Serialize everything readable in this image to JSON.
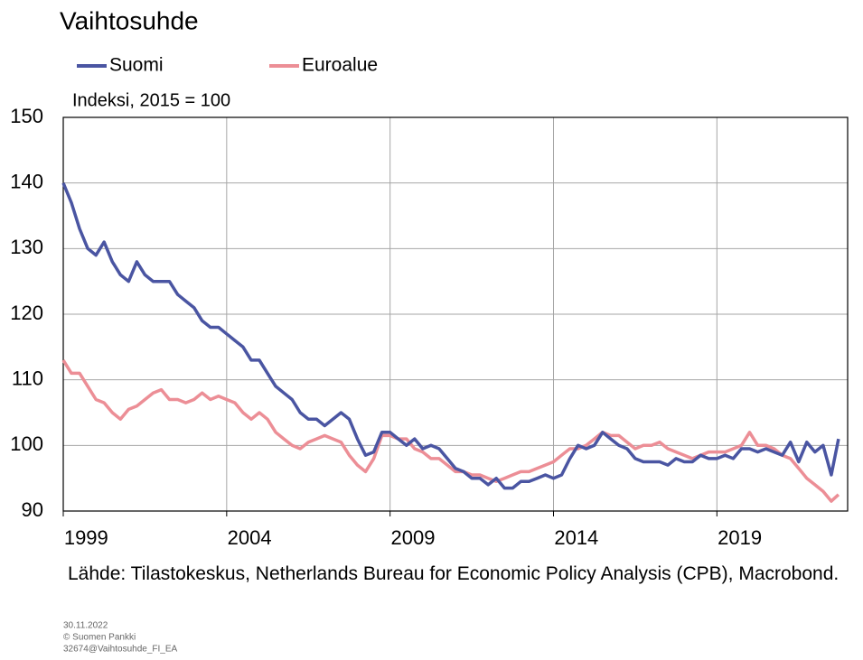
{
  "chart_data": {
    "type": "line",
    "title": "Vaihtosuhde",
    "y_label": "Indeksi, 2015 = 100",
    "source": "Lähde: Tilastokeskus, Netherlands Bureau for Economic Policy Analysis (CPB), Macrobond.",
    "footer": [
      "30.11.2022",
      "© Suomen Pankki",
      "32674@Vaihtosuhde_FI_EA"
    ],
    "grid": true,
    "xlim": [
      1999,
      2023
    ],
    "xticks": [
      1999,
      2004,
      2009,
      2014,
      2019
    ],
    "ylim": [
      90,
      150
    ],
    "yticks": [
      90,
      100,
      110,
      120,
      130,
      140,
      150
    ],
    "x": [
      1999.0,
      1999.25,
      1999.5,
      1999.75,
      2000.0,
      2000.25,
      2000.5,
      2000.75,
      2001.0,
      2001.25,
      2001.5,
      2001.75,
      2002.0,
      2002.25,
      2002.5,
      2002.75,
      2003.0,
      2003.25,
      2003.5,
      2003.75,
      2004.0,
      2004.25,
      2004.5,
      2004.75,
      2005.0,
      2005.25,
      2005.5,
      2005.75,
      2006.0,
      2006.25,
      2006.5,
      2006.75,
      2007.0,
      2007.25,
      2007.5,
      2007.75,
      2008.0,
      2008.25,
      2008.5,
      2008.75,
      2009.0,
      2009.25,
      2009.5,
      2009.75,
      2010.0,
      2010.25,
      2010.5,
      2010.75,
      2011.0,
      2011.25,
      2011.5,
      2011.75,
      2012.0,
      2012.25,
      2012.5,
      2012.75,
      2013.0,
      2013.25,
      2013.5,
      2013.75,
      2014.0,
      2014.25,
      2014.5,
      2014.75,
      2015.0,
      2015.25,
      2015.5,
      2015.75,
      2016.0,
      2016.25,
      2016.5,
      2016.75,
      2017.0,
      2017.25,
      2017.5,
      2017.75,
      2018.0,
      2018.25,
      2018.5,
      2018.75,
      2019.0,
      2019.25,
      2019.5,
      2019.75,
      2020.0,
      2020.25,
      2020.5,
      2020.75,
      2021.0,
      2021.25,
      2021.5,
      2021.75,
      2022.0,
      2022.25,
      2022.5,
      2022.72
    ],
    "series": [
      {
        "name": "Suomi",
        "color": "#4a55a2",
        "values": [
          140,
          137,
          133,
          130,
          129,
          131,
          128,
          126,
          125,
          128,
          126,
          125,
          125,
          125,
          123,
          122,
          121,
          119,
          118,
          118,
          117,
          116,
          115,
          113,
          113,
          111,
          109,
          108,
          107,
          105,
          104,
          104,
          103,
          104,
          105,
          104,
          101,
          98.5,
          99,
          102,
          102,
          101,
          100,
          101,
          99.5,
          100,
          99.5,
          98,
          96.5,
          96,
          95,
          95,
          94,
          95,
          93.5,
          93.5,
          94.5,
          94.5,
          95,
          95.5,
          95,
          95.5,
          98,
          100,
          99.5,
          100,
          102,
          101,
          100,
          99.5,
          98,
          97.5,
          97.5,
          97.5,
          97,
          98,
          97.5,
          97.5,
          98.5,
          98,
          98,
          98.5,
          98,
          99.5,
          99.5,
          99,
          99.5,
          99,
          98.5,
          100.5,
          97.5,
          100.5,
          99,
          100,
          95.5,
          101
        ]
      },
      {
        "name": "Euroalue",
        "color": "#ec8e96",
        "values": [
          113,
          111,
          111,
          109,
          107,
          106.5,
          105,
          104,
          105.5,
          106,
          107,
          108,
          108.5,
          107,
          107,
          106.5,
          107,
          108,
          107,
          107.5,
          107,
          106.5,
          105,
          104,
          105,
          104,
          102,
          101,
          100,
          99.5,
          100.5,
          101,
          101.5,
          101,
          100.5,
          98.5,
          97,
          96,
          98,
          101.5,
          101.5,
          101,
          101,
          99.5,
          99,
          98,
          98,
          97,
          96,
          96,
          95.5,
          95.5,
          95,
          94.5,
          95,
          95.5,
          96,
          96,
          96.5,
          97,
          97.5,
          98.5,
          99.5,
          99.5,
          100,
          101,
          102,
          101.5,
          101.5,
          100.5,
          99.5,
          100,
          100,
          100.5,
          99.5,
          99,
          98.5,
          98,
          98.5,
          99,
          99,
          99,
          99.5,
          100,
          102,
          100,
          100,
          99.5,
          98.5,
          98,
          96.5,
          95,
          94,
          93,
          91.5,
          92.5
        ]
      }
    ]
  }
}
